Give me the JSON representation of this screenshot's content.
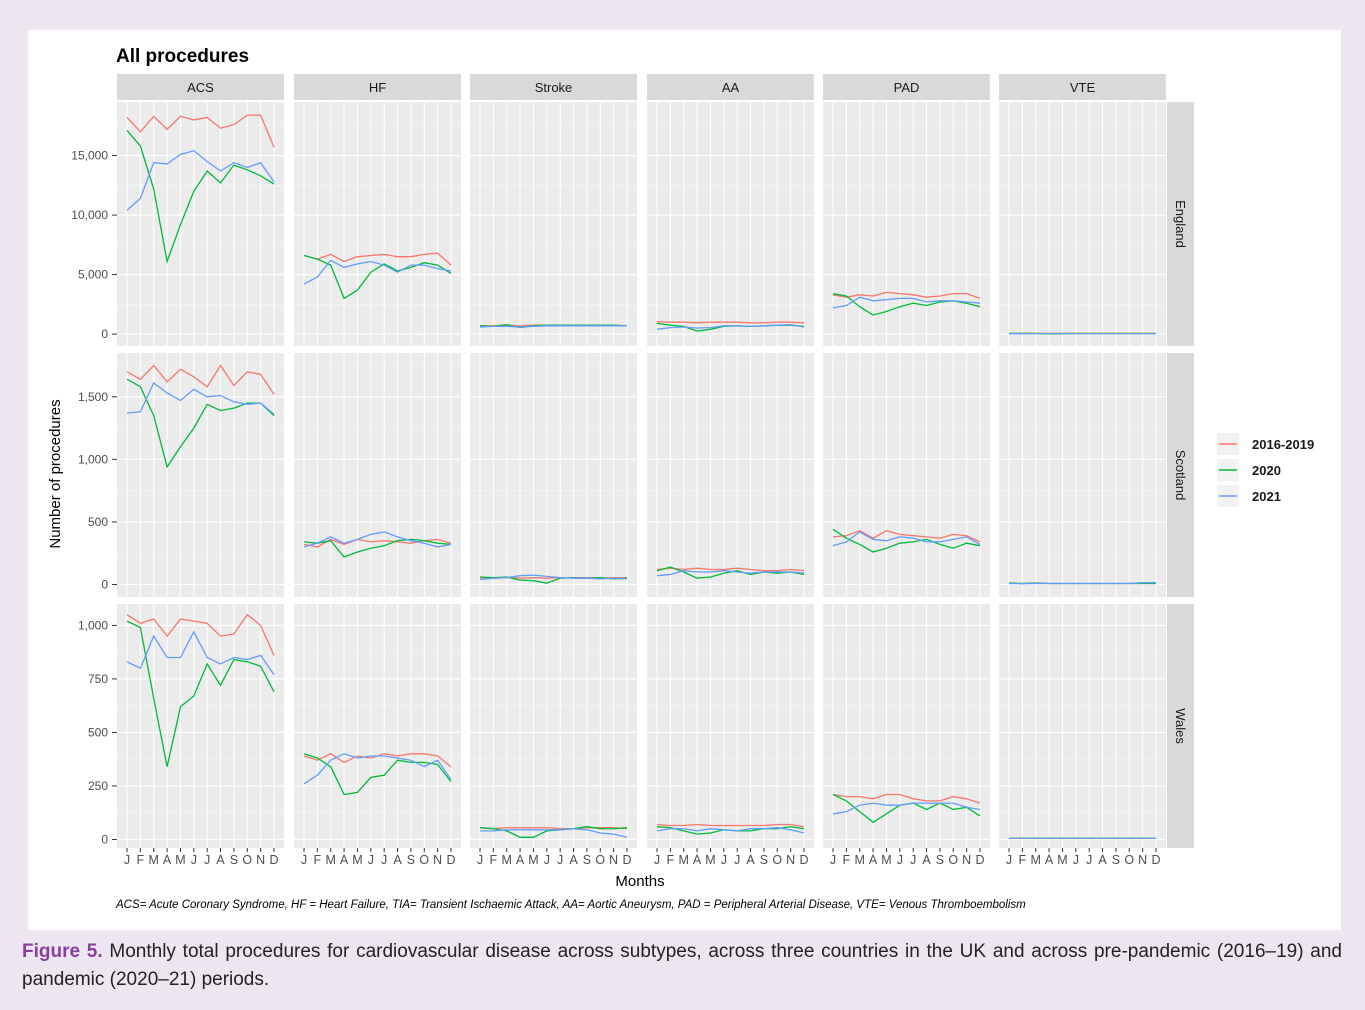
{
  "figure": {
    "label": "Figure 5.",
    "caption": " Monthly total procedures for cardiovascular disease across subtypes, across three countries in the UK and across pre-pandemic (2016–19) and pandemic (2020–21) periods."
  },
  "chart_data": {
    "type": "line",
    "title": "All procedures",
    "xlabel": "Months",
    "ylabel": "Number of procedures",
    "footnote": "ACS= Acute Coronary Syndrome, HF = Heart Failure, TIA= Transient Ischaemic Attack, AA= Aortic Aneurysm, PAD = Peripheral Arterial Disease, VTE= Venous Thromboembolism",
    "x_ticks": [
      "J",
      "F",
      "M",
      "A",
      "M",
      "J",
      "J",
      "A",
      "S",
      "O",
      "N",
      "D"
    ],
    "columns": [
      "ACS",
      "HF",
      "Stroke",
      "AA",
      "PAD",
      "VTE"
    ],
    "rows": [
      {
        "name": "England",
        "ylim": [
          -1000,
          19500
        ],
        "ticks": [
          0,
          5000,
          10000,
          15000
        ],
        "tick_labels": [
          "0",
          "5,000",
          "10,000",
          "15,000"
        ]
      },
      {
        "name": "Scotland",
        "ylim": [
          -100,
          1850
        ],
        "ticks": [
          0,
          500,
          1000,
          1500
        ],
        "tick_labels": [
          "0",
          "500",
          "1,000",
          "1,500"
        ]
      },
      {
        "name": "Wales",
        "ylim": [
          -40,
          1100
        ],
        "ticks": [
          0,
          250,
          500,
          750,
          1000
        ],
        "tick_labels": [
          "0",
          "250",
          "500",
          "750",
          "1,000"
        ]
      }
    ],
    "legend": {
      "position": "right",
      "entries": [
        {
          "name": "2016-2019",
          "color": "#f8766d"
        },
        {
          "name": "2020",
          "color": "#00ba38"
        },
        {
          "name": "2021",
          "color": "#619cff"
        }
      ]
    },
    "grid": true,
    "series": {
      "England": {
        "ACS": {
          "2016-2019": [
            18200,
            17000,
            18300,
            17200,
            18300,
            18000,
            18200,
            17300,
            17600,
            18400,
            18400,
            15700
          ],
          "2020": [
            17100,
            15800,
            12200,
            6100,
            9200,
            12000,
            13700,
            12700,
            14200,
            13800,
            13300,
            12600
          ],
          "2021": [
            10400,
            11400,
            14400,
            14300,
            15100,
            15400,
            14500,
            13700,
            14400,
            14000,
            14400,
            12800
          ]
        },
        "HF": {
          "2016-2019": [
            6600,
            6300,
            6700,
            6100,
            6500,
            6600,
            6700,
            6500,
            6500,
            6700,
            6800,
            5800
          ],
          "2020": [
            6600,
            6300,
            5800,
            3000,
            3700,
            5200,
            5900,
            5300,
            5600,
            6000,
            5800,
            5100
          ],
          "2021": [
            4200,
            4800,
            6200,
            5600,
            5900,
            6100,
            5800,
            5200,
            5800,
            5800,
            5500,
            5300
          ]
        },
        "Stroke": {
          "2016-2019": [
            700,
            700,
            750,
            700,
            750,
            750,
            750,
            750,
            750,
            750,
            750,
            700
          ],
          "2020": [
            700,
            650,
            800,
            550,
            700,
            750,
            750,
            750,
            750,
            750,
            750,
            700
          ],
          "2021": [
            600,
            650,
            650,
            600,
            650,
            700,
            700,
            700,
            700,
            700,
            700,
            700
          ]
        },
        "AA": {
          "2016-2019": [
            1050,
            1000,
            1000,
            950,
            1000,
            1000,
            1000,
            950,
            950,
            1000,
            1000,
            950
          ],
          "2020": [
            900,
            750,
            650,
            250,
            400,
            650,
            700,
            650,
            700,
            750,
            750,
            650
          ],
          "2021": [
            400,
            550,
            600,
            500,
            550,
            700,
            700,
            650,
            700,
            750,
            800,
            600
          ]
        },
        "PAD": {
          "2016-2019": [
            3300,
            3100,
            3300,
            3200,
            3500,
            3400,
            3300,
            3100,
            3200,
            3400,
            3400,
            3000
          ],
          "2020": [
            3400,
            3200,
            2300,
            1600,
            1900,
            2300,
            2600,
            2400,
            2700,
            2800,
            2600,
            2300
          ],
          "2021": [
            2200,
            2400,
            3100,
            2800,
            2900,
            3000,
            3000,
            2700,
            2800,
            2800,
            2700,
            2600
          ]
        },
        "VTE": {
          "2016-2019": [
            60,
            60,
            60,
            60,
            60,
            60,
            60,
            60,
            60,
            60,
            60,
            60
          ],
          "2020": [
            60,
            60,
            50,
            20,
            30,
            50,
            50,
            50,
            50,
            50,
            50,
            50
          ],
          "2021": [
            30,
            30,
            40,
            40,
            40,
            40,
            40,
            40,
            40,
            40,
            40,
            40
          ]
        }
      },
      "Scotland": {
        "ACS": {
          "2016-2019": [
            1700,
            1640,
            1750,
            1620,
            1720,
            1660,
            1580,
            1750,
            1590,
            1700,
            1680,
            1520
          ],
          "2020": [
            1640,
            1580,
            1350,
            940,
            1100,
            1250,
            1440,
            1390,
            1410,
            1450,
            1450,
            1350
          ],
          "2021": [
            1370,
            1380,
            1610,
            1530,
            1470,
            1560,
            1500,
            1510,
            1460,
            1440,
            1450,
            1360
          ]
        },
        "HF": {
          "2016-2019": [
            320,
            300,
            360,
            320,
            360,
            340,
            350,
            340,
            330,
            350,
            360,
            330
          ],
          "2020": [
            340,
            330,
            350,
            220,
            260,
            290,
            310,
            350,
            360,
            350,
            330,
            320
          ],
          "2021": [
            300,
            330,
            380,
            330,
            360,
            400,
            420,
            380,
            350,
            330,
            300,
            320
          ]
        },
        "Stroke": {
          "2016-2019": [
            55,
            50,
            55,
            50,
            55,
            50,
            55,
            55,
            55,
            50,
            55,
            55
          ],
          "2020": [
            60,
            55,
            60,
            35,
            30,
            10,
            50,
            55,
            50,
            55,
            45,
            50
          ],
          "2021": [
            40,
            50,
            55,
            70,
            75,
            65,
            55,
            50,
            50,
            45,
            50,
            45
          ]
        },
        "AA": {
          "2016-2019": [
            120,
            130,
            120,
            130,
            120,
            120,
            130,
            120,
            110,
            110,
            120,
            110
          ],
          "2020": [
            110,
            140,
            100,
            50,
            60,
            90,
            110,
            80,
            100,
            90,
            100,
            80
          ],
          "2021": [
            70,
            80,
            110,
            100,
            100,
            110,
            100,
            90,
            100,
            100,
            100,
            90
          ]
        },
        "PAD": {
          "2016-2019": [
            380,
            390,
            430,
            370,
            430,
            400,
            390,
            380,
            370,
            400,
            390,
            340
          ],
          "2020": [
            440,
            370,
            320,
            260,
            290,
            330,
            340,
            360,
            320,
            290,
            330,
            310
          ],
          "2021": [
            310,
            340,
            420,
            360,
            350,
            380,
            370,
            340,
            340,
            360,
            380,
            320
          ]
        },
        "VTE": {
          "2016-2019": [
            10,
            8,
            10,
            8,
            8,
            8,
            8,
            8,
            8,
            8,
            8,
            8
          ],
          "2020": [
            12,
            8,
            12,
            8,
            8,
            8,
            8,
            8,
            8,
            8,
            8,
            8
          ],
          "2021": [
            8,
            6,
            8,
            8,
            8,
            8,
            8,
            8,
            8,
            8,
            14,
            14
          ]
        }
      },
      "Wales": {
        "ACS": {
          "2016-2019": [
            1050,
            1010,
            1030,
            950,
            1030,
            1020,
            1010,
            950,
            960,
            1050,
            1000,
            860
          ],
          "2020": [
            1020,
            990,
            660,
            340,
            620,
            670,
            820,
            720,
            840,
            830,
            810,
            690
          ],
          "2021": [
            830,
            800,
            950,
            850,
            850,
            970,
            850,
            820,
            850,
            840,
            860,
            770
          ]
        },
        "HF": {
          "2016-2019": [
            390,
            370,
            400,
            360,
            390,
            380,
            400,
            390,
            400,
            400,
            390,
            340
          ],
          "2020": [
            400,
            380,
            340,
            210,
            220,
            290,
            300,
            370,
            360,
            360,
            350,
            270
          ],
          "2021": [
            260,
            300,
            370,
            400,
            380,
            390,
            390,
            380,
            370,
            340,
            370,
            280
          ]
        },
        "Stroke": {
          "2016-2019": [
            55,
            50,
            55,
            55,
            55,
            55,
            50,
            50,
            55,
            55,
            55,
            50
          ],
          "2020": [
            55,
            50,
            40,
            10,
            10,
            40,
            45,
            50,
            60,
            50,
            50,
            55
          ],
          "2021": [
            40,
            40,
            45,
            45,
            45,
            45,
            45,
            50,
            45,
            30,
            25,
            10
          ]
        },
        "AA": {
          "2016-2019": [
            70,
            65,
            65,
            70,
            65,
            65,
            65,
            65,
            65,
            70,
            70,
            60
          ],
          "2020": [
            60,
            55,
            40,
            25,
            30,
            45,
            40,
            40,
            50,
            50,
            60,
            50
          ],
          "2021": [
            40,
            50,
            50,
            40,
            50,
            45,
            40,
            50,
            50,
            55,
            45,
            30
          ]
        },
        "PAD": {
          "2016-2019": [
            210,
            200,
            200,
            190,
            210,
            210,
            190,
            180,
            180,
            200,
            190,
            170
          ],
          "2020": [
            210,
            180,
            130,
            80,
            120,
            160,
            170,
            140,
            170,
            140,
            150,
            110
          ],
          "2021": [
            120,
            130,
            160,
            170,
            160,
            160,
            170,
            170,
            170,
            170,
            150,
            140
          ]
        },
        "VTE": {
          "2016-2019": [
            5,
            5,
            5,
            5,
            5,
            5,
            5,
            5,
            5,
            5,
            5,
            5
          ],
          "2020": [
            5,
            5,
            5,
            5,
            5,
            5,
            5,
            5,
            5,
            5,
            5,
            5
          ],
          "2021": [
            5,
            5,
            5,
            5,
            5,
            5,
            5,
            5,
            5,
            5,
            5,
            5
          ]
        }
      }
    }
  }
}
